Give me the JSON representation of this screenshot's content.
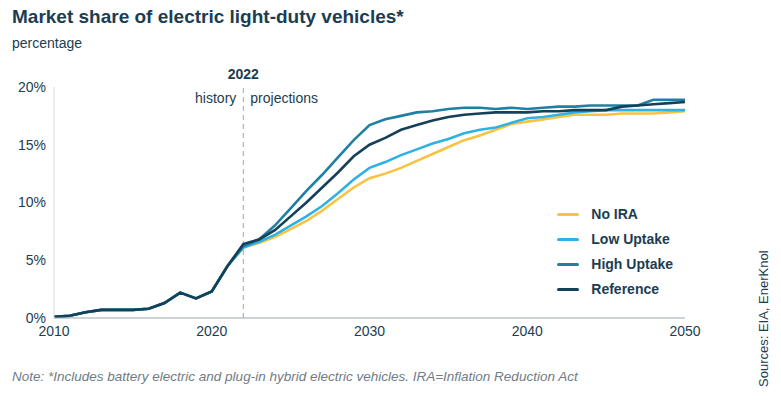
{
  "chart_data": {
    "type": "line",
    "title": "Market share of electric light-duty vehicles*",
    "subtitle": "percentage",
    "note": "Note: *Includes battery electric and plug-in hybrid electric vehicles. IRA=Inflation Reduction Act",
    "source": "Sources: EIA, EnerKnol",
    "annotation": {
      "x": 2022,
      "label": "2022",
      "before": "history",
      "after": "projections"
    },
    "x": [
      2010,
      2011,
      2012,
      2013,
      2014,
      2015,
      2016,
      2017,
      2018,
      2019,
      2020,
      2021,
      2022,
      2023,
      2024,
      2025,
      2026,
      2027,
      2028,
      2029,
      2030,
      2031,
      2032,
      2033,
      2034,
      2035,
      2036,
      2037,
      2038,
      2039,
      2040,
      2041,
      2042,
      2043,
      2044,
      2045,
      2046,
      2047,
      2048,
      2049,
      2050
    ],
    "series": [
      {
        "name": "No IRA",
        "color": "#f7c340",
        "values": [
          0.1,
          0.2,
          0.5,
          0.7,
          0.7,
          0.7,
          0.8,
          1.3,
          2.2,
          1.7,
          2.3,
          4.5,
          6.1,
          6.5,
          7.0,
          7.7,
          8.4,
          9.3,
          10.3,
          11.3,
          12.1,
          12.5,
          13.0,
          13.6,
          14.2,
          14.8,
          15.4,
          15.8,
          16.3,
          16.8,
          17.0,
          17.2,
          17.4,
          17.6,
          17.6,
          17.6,
          17.7,
          17.7,
          17.7,
          17.8,
          17.9
        ]
      },
      {
        "name": "Low Uptake",
        "color": "#2eb2e6",
        "values": [
          0.1,
          0.2,
          0.5,
          0.7,
          0.7,
          0.7,
          0.8,
          1.3,
          2.2,
          1.7,
          2.3,
          4.5,
          6.1,
          6.6,
          7.2,
          8.0,
          8.8,
          9.7,
          10.8,
          12.0,
          13.0,
          13.5,
          14.1,
          14.6,
          15.1,
          15.5,
          16.0,
          16.3,
          16.5,
          16.9,
          17.3,
          17.4,
          17.6,
          17.8,
          17.9,
          18.0,
          18.0,
          18.0,
          18.0,
          18.0,
          18.0
        ]
      },
      {
        "name": "High Uptake",
        "color": "#1f7fa5",
        "values": [
          0.1,
          0.2,
          0.5,
          0.7,
          0.7,
          0.7,
          0.8,
          1.3,
          2.2,
          1.7,
          2.3,
          4.5,
          6.2,
          6.8,
          8.0,
          9.5,
          11.0,
          12.4,
          13.9,
          15.4,
          16.7,
          17.2,
          17.5,
          17.8,
          17.9,
          18.1,
          18.2,
          18.2,
          18.1,
          18.2,
          18.1,
          18.2,
          18.3,
          18.3,
          18.4,
          18.4,
          18.4,
          18.4,
          18.9,
          18.9,
          18.9
        ]
      },
      {
        "name": "Reference",
        "color": "#14405a",
        "values": [
          0.1,
          0.2,
          0.5,
          0.7,
          0.7,
          0.7,
          0.8,
          1.3,
          2.2,
          1.7,
          2.3,
          4.5,
          6.4,
          6.8,
          7.6,
          8.8,
          10.0,
          11.3,
          12.6,
          14.0,
          15.0,
          15.6,
          16.3,
          16.7,
          17.1,
          17.4,
          17.6,
          17.7,
          17.8,
          17.8,
          17.8,
          17.9,
          17.9,
          18.0,
          18.0,
          18.0,
          18.3,
          18.4,
          18.5,
          18.6,
          18.7
        ]
      }
    ],
    "xlim": [
      2010,
      2050
    ],
    "xticks": [
      2010,
      2020,
      2030,
      2040,
      2050
    ],
    "ylim": [
      0,
      20
    ],
    "yticks": [
      {
        "value": 0,
        "label": "0%"
      },
      {
        "value": 5,
        "label": "5%"
      },
      {
        "value": 10,
        "label": "10%"
      },
      {
        "value": 15,
        "label": "15%"
      },
      {
        "value": 20,
        "label": "20%"
      }
    ],
    "grid": false,
    "legend": "lower right"
  }
}
